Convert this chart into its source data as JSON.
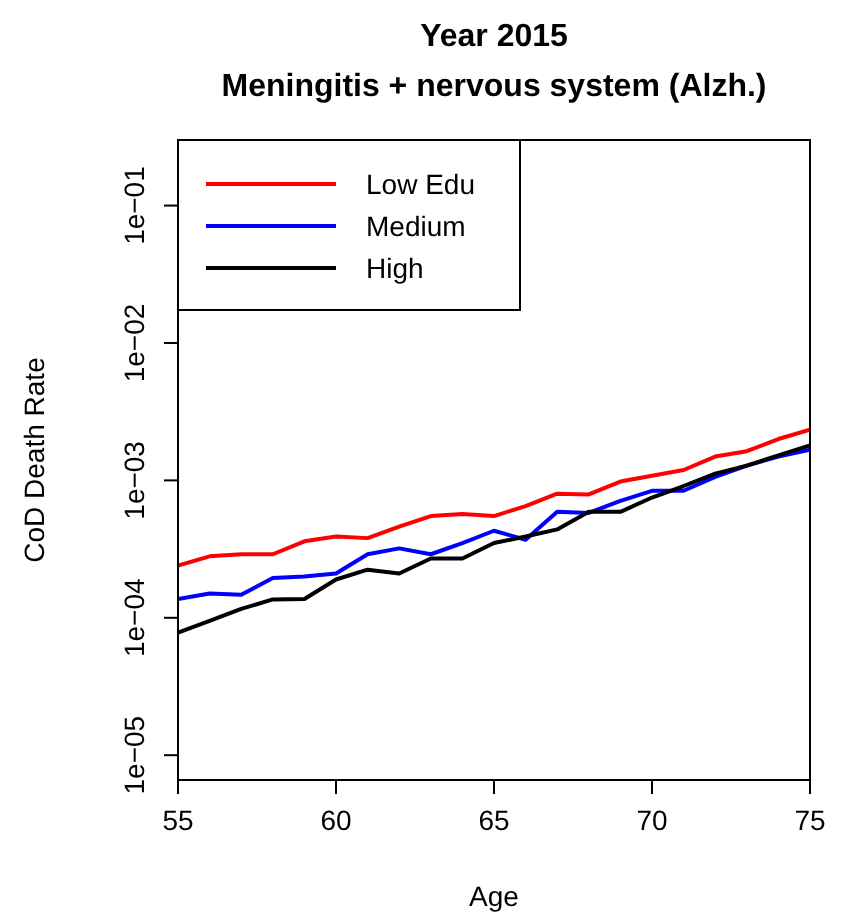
{
  "chart_data": {
    "type": "line",
    "title": "Year 2015",
    "subtitle": "Meningitis + nervous system (Alzh.)",
    "xlabel": "Age",
    "ylabel": "CoD Death Rate",
    "x": [
      55,
      56,
      57,
      58,
      59,
      60,
      61,
      62,
      63,
      64,
      65,
      66,
      67,
      68,
      69,
      70,
      71,
      72,
      73,
      74,
      75
    ],
    "series": [
      {
        "name": "Low Edu",
        "color": "#ff0000",
        "values": [
          0.00024,
          0.00028,
          0.00029,
          0.00029,
          0.00036,
          0.00039,
          0.00038,
          0.00046,
          0.00055,
          0.00057,
          0.00055,
          0.00065,
          0.0008,
          0.00079,
          0.00098,
          0.00108,
          0.00119,
          0.00149,
          0.00163,
          0.002,
          0.00234
        ]
      },
      {
        "name": "Medium",
        "color": "#0000ff",
        "values": [
          0.000137,
          0.00015,
          0.000147,
          0.000195,
          0.0002,
          0.00021,
          0.00029,
          0.00032,
          0.00029,
          0.00035,
          0.00043,
          0.00037,
          0.00059,
          0.00058,
          0.00071,
          0.00084,
          0.00084,
          0.00106,
          0.00128,
          0.00149,
          0.00167
        ]
      },
      {
        "name": "High",
        "color": "#000000",
        "values": [
          7.8e-05,
          9.5e-05,
          0.000116,
          0.000136,
          0.000137,
          0.00019,
          0.000224,
          0.00021,
          0.00027,
          0.00027,
          0.00035,
          0.00039,
          0.00044,
          0.00059,
          0.00059,
          0.00075,
          0.00091,
          0.00112,
          0.00128,
          0.00152,
          0.0018
        ]
      }
    ],
    "log": true,
    "xlim": [
      55,
      75
    ],
    "ylim": [
      6.6e-06,
      0.3
    ],
    "xticks": [
      55,
      60,
      65,
      70,
      75
    ],
    "yticks": [
      {
        "value": 1e-05,
        "label": "1e−05"
      },
      {
        "value": 0.0001,
        "label": "1e−04"
      },
      {
        "value": 0.001,
        "label": "1e−03"
      },
      {
        "value": 0.01,
        "label": "1e−02"
      },
      {
        "value": 0.1,
        "label": "1e−01"
      }
    ],
    "legend": "top left",
    "line_style": "solid",
    "marker": "none"
  }
}
